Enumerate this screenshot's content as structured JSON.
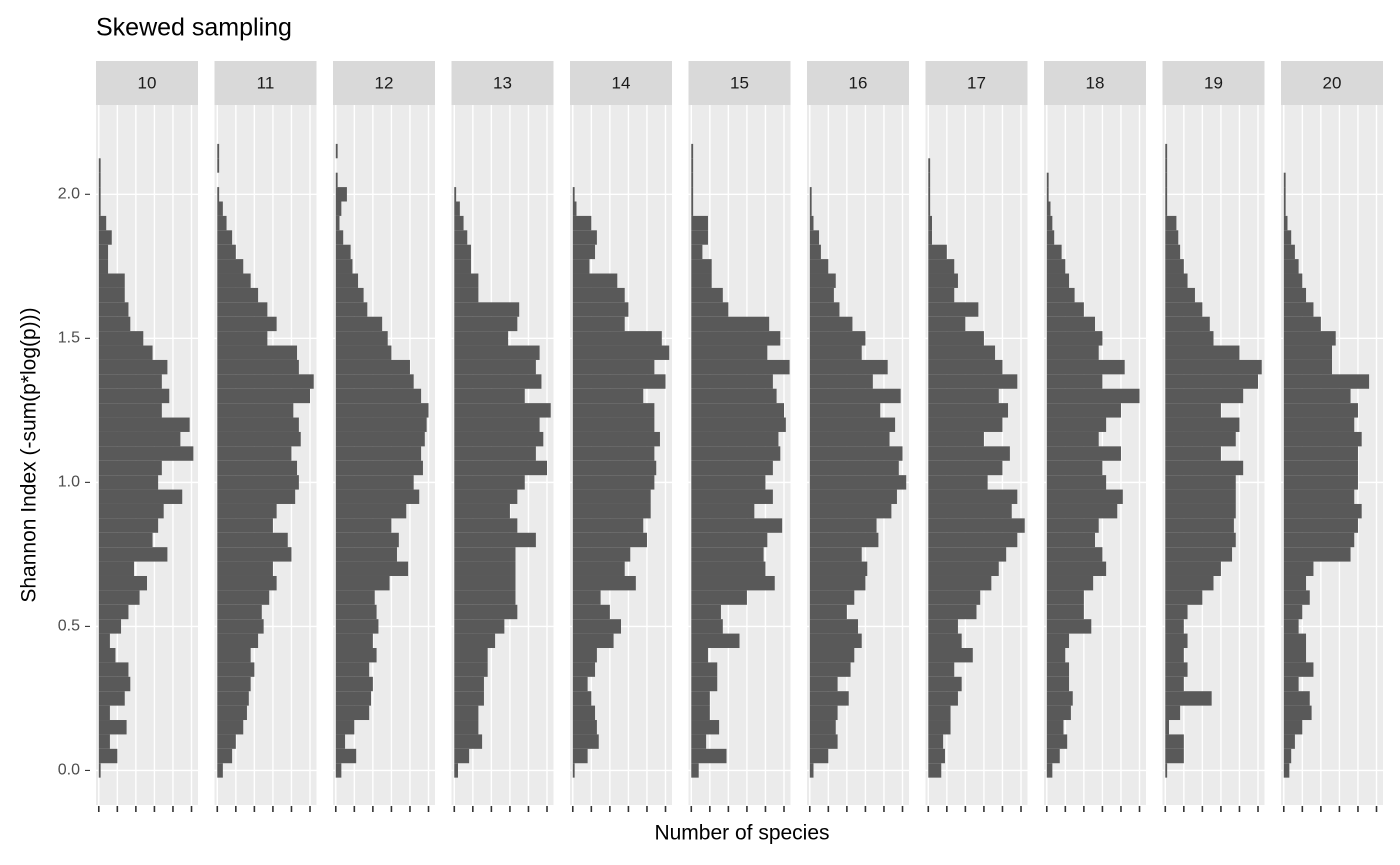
{
  "chart_data": {
    "type": "histogram",
    "title": "Skewed sampling",
    "xlabel": "Number of species",
    "ylabel": "Shannon Index (-sum(p*log(p)))",
    "color": "#595959",
    "grid": true,
    "bins": [
      -0.025,
      0.025,
      0.075,
      0.125,
      0.175,
      0.225,
      0.275,
      0.325,
      0.375,
      0.425,
      0.475,
      0.525,
      0.575,
      0.625,
      0.675,
      0.725,
      0.775,
      0.825,
      0.875,
      0.925,
      0.975,
      1.025,
      1.075,
      1.125,
      1.175,
      1.225,
      1.275,
      1.325,
      1.375,
      1.425,
      1.475,
      1.525,
      1.575,
      1.625,
      1.675,
      1.725,
      1.775,
      1.825,
      1.875,
      1.925,
      1.975,
      2.025,
      2.075,
      2.125,
      2.175,
      2.225
    ],
    "ylim": [
      -0.12,
      2.31
    ],
    "yticks": [
      {
        "value": 0,
        "label": "0.0"
      },
      {
        "value": 0.5,
        "label": "0.5"
      },
      {
        "value": 1,
        "label": "1.0"
      },
      {
        "value": 1.5,
        "label": "1.5"
      },
      {
        "value": 2,
        "label": "2.0"
      }
    ],
    "xlim": [
      -1.5,
      53.5
    ],
    "xticks": [
      0,
      10,
      20,
      30,
      40,
      50
    ],
    "facets": [
      {
        "name": "10",
        "values": [
          1,
          10,
          6,
          15,
          6,
          14,
          17,
          16,
          9,
          6,
          12,
          16,
          22,
          26,
          19,
          37,
          29,
          32,
          35,
          45,
          32,
          34,
          51,
          44,
          49,
          34,
          38,
          34,
          37,
          29,
          24,
          17,
          16,
          14,
          14,
          5,
          5,
          7,
          4,
          1,
          1,
          1,
          1,
          0,
          0
        ]
      },
      {
        "name": "11",
        "values": [
          3,
          8,
          10,
          14,
          16,
          17,
          18,
          20,
          18,
          22,
          25,
          24,
          28,
          32,
          30,
          40,
          38,
          30,
          32,
          42,
          44,
          43,
          40,
          45,
          44,
          41,
          50,
          52,
          44,
          43,
          27,
          32,
          27,
          22,
          18,
          14,
          10,
          8,
          5,
          3,
          1,
          0,
          1,
          1,
          0
        ]
      },
      {
        "name": "12",
        "values": [
          3,
          11,
          5,
          10,
          18,
          19,
          20,
          18,
          22,
          20,
          23,
          22,
          21,
          29,
          39,
          33,
          34,
          30,
          38,
          45,
          42,
          47,
          46,
          48,
          49,
          50,
          46,
          42,
          40,
          30,
          28,
          25,
          17,
          15,
          12,
          9,
          8,
          4,
          2,
          3,
          6,
          1,
          0,
          1,
          0
        ]
      },
      {
        "name": "13",
        "values": [
          2,
          8,
          15,
          13,
          13,
          16,
          16,
          18,
          18,
          22,
          27,
          34,
          33,
          33,
          33,
          33,
          44,
          34,
          30,
          34,
          38,
          50,
          44,
          48,
          46,
          52,
          38,
          47,
          44,
          46,
          29,
          34,
          35,
          13,
          13,
          9,
          9,
          7,
          5,
          3,
          1,
          0,
          0,
          0,
          0
        ]
      },
      {
        "name": "14",
        "values": [
          1,
          8,
          14,
          13,
          12,
          10,
          8,
          12,
          13,
          22,
          26,
          20,
          15,
          34,
          28,
          31,
          40,
          38,
          42,
          42,
          44,
          45,
          44,
          47,
          44,
          44,
          38,
          50,
          44,
          52,
          48,
          28,
          30,
          28,
          24,
          9,
          12,
          13,
          10,
          2,
          1,
          0,
          0,
          0,
          0
        ]
      },
      {
        "name": "15",
        "values": [
          4,
          19,
          8,
          15,
          10,
          10,
          14,
          14,
          9,
          26,
          17,
          16,
          30,
          45,
          40,
          39,
          41,
          49,
          34,
          44,
          40,
          44,
          48,
          47,
          51,
          50,
          46,
          44,
          53,
          41,
          48,
          42,
          20,
          17,
          11,
          11,
          6,
          9,
          9,
          1,
          1,
          1,
          1,
          1,
          0
        ]
      },
      {
        "name": "16",
        "values": [
          2,
          10,
          15,
          14,
          15,
          21,
          15,
          22,
          24,
          28,
          26,
          20,
          24,
          30,
          31,
          28,
          37,
          36,
          44,
          47,
          52,
          48,
          50,
          43,
          46,
          38,
          49,
          34,
          42,
          28,
          30,
          23,
          16,
          13,
          14,
          10,
          6,
          5,
          2,
          1,
          1,
          0,
          0,
          0,
          0
        ]
      },
      {
        "name": "17",
        "values": [
          7,
          9,
          8,
          12,
          12,
          16,
          18,
          14,
          24,
          18,
          16,
          26,
          28,
          34,
          38,
          42,
          48,
          52,
          45,
          48,
          32,
          40,
          44,
          30,
          40,
          43,
          38,
          48,
          40,
          36,
          30,
          20,
          27,
          14,
          16,
          14,
          10,
          2,
          2,
          1,
          1,
          1,
          1,
          0,
          0
        ]
      },
      {
        "name": "18",
        "values": [
          3,
          7,
          11,
          9,
          13,
          14,
          12,
          12,
          10,
          12,
          24,
          20,
          20,
          25,
          32,
          30,
          26,
          28,
          38,
          41,
          32,
          30,
          40,
          28,
          32,
          40,
          50,
          30,
          42,
          28,
          30,
          26,
          20,
          15,
          12,
          10,
          8,
          4,
          3,
          2,
          1,
          1,
          0,
          0,
          0
        ]
      },
      {
        "name": "19",
        "values": [
          1,
          10,
          10,
          2,
          8,
          25,
          10,
          12,
          10,
          12,
          10,
          12,
          20,
          26,
          30,
          36,
          38,
          37,
          38,
          38,
          38,
          42,
          30,
          38,
          40,
          30,
          42,
          50,
          52,
          40,
          26,
          24,
          20,
          16,
          12,
          10,
          8,
          7,
          6,
          1,
          1,
          1,
          1,
          1,
          0
        ]
      },
      {
        "name": "20",
        "values": [
          3,
          4,
          6,
          10,
          15,
          14,
          8,
          16,
          12,
          12,
          8,
          10,
          14,
          12,
          16,
          36,
          38,
          40,
          42,
          38,
          40,
          40,
          40,
          42,
          38,
          40,
          36,
          46,
          26,
          26,
          28,
          20,
          16,
          12,
          10,
          8,
          6,
          4,
          2,
          1,
          1,
          1,
          0,
          0,
          0
        ]
      }
    ]
  }
}
